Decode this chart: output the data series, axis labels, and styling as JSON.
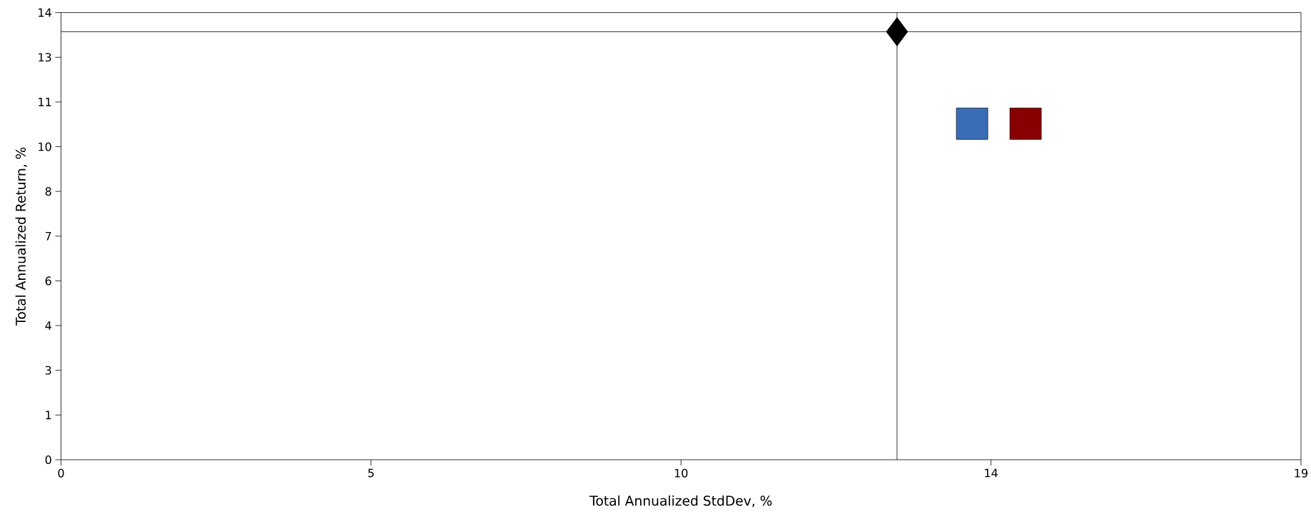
{
  "chart_data": {
    "type": "scatter",
    "xlabel": "Total Annualized StdDev, %",
    "ylabel": "Total Annualized Return, %",
    "xlim": [
      0,
      19
    ],
    "ylim": [
      0,
      14
    ],
    "xticks": [
      0,
      {
        "value": 4.75,
        "label": "5"
      },
      {
        "value": 9.5,
        "label": "10"
      },
      {
        "value": 14.25,
        "label": "14"
      },
      19
    ],
    "yticks": [
      0,
      {
        "value": 1.4,
        "label": "1"
      },
      {
        "value": 2.8,
        "label": "3"
      },
      {
        "value": 4.2,
        "label": "4"
      },
      {
        "value": 5.6,
        "label": "6"
      },
      7,
      {
        "value": 8.4,
        "label": "8"
      },
      {
        "value": 9.8,
        "label": "10"
      },
      {
        "value": 11.2,
        "label": "11"
      },
      {
        "value": 12.6,
        "label": "13"
      },
      14
    ],
    "series": [
      {
        "color": "#000000",
        "marker": "diamond",
        "x": [
          12.81
        ],
        "values": [
          13.4
        ]
      },
      {
        "color": "#3a6db5",
        "marker": "square",
        "x": [
          13.96
        ],
        "values": [
          10.52
        ]
      },
      {
        "color": "#880000",
        "marker": "square",
        "x": [
          14.78
        ],
        "values": [
          10.52
        ]
      }
    ],
    "ref_lines": [
      {
        "axis": "x",
        "value": 12.81
      },
      {
        "axis": "y",
        "value": 13.4
      }
    ]
  }
}
